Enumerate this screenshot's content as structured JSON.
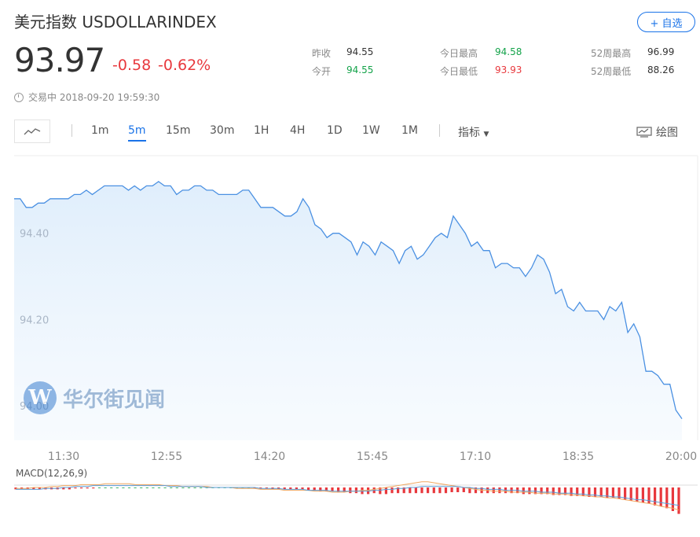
{
  "header": {
    "title": "美元指数 USDOLLARINDEX",
    "add_button": "+ 自选",
    "price": "93.97",
    "change": "-0.58",
    "change_pct": "-0.62%",
    "status": "交易中 2018-09-20 19:59:30"
  },
  "stats": [
    {
      "label": "昨收",
      "value": "94.55"
    },
    {
      "label": "今开",
      "value": "94.55"
    },
    {
      "label": "今日最高",
      "value": "94.58"
    },
    {
      "label": "今日最低",
      "value": "93.93"
    },
    {
      "label": "52周最高",
      "value": "96.99"
    },
    {
      "label": "52周最低",
      "value": "88.26"
    }
  ],
  "toolbar": {
    "periods": [
      "1m",
      "5m",
      "15m",
      "30m",
      "1H",
      "4H",
      "1D",
      "1W",
      "1M"
    ],
    "active_period": "5m",
    "indicator": "指标",
    "draw": "绘图"
  },
  "macd_label": "MACD(12,26,9)",
  "watermark": "华尔街见闻",
  "colors": {
    "line": "#4a90e2",
    "up": "#e8383d",
    "down": "#14a34a",
    "accent": "#1a73e8",
    "macd_bar": "#e8383d"
  },
  "chart_data": {
    "type": "area",
    "x_ticks": [
      "11:30",
      "12:55",
      "14:20",
      "15:45",
      "17:10",
      "18:35",
      "20:00"
    ],
    "y_ticks": [
      "94.40",
      "94.20",
      "94.00"
    ],
    "ylim": [
      93.92,
      94.58
    ],
    "values": [
      94.48,
      94.48,
      94.46,
      94.46,
      94.47,
      94.47,
      94.48,
      94.48,
      94.48,
      94.48,
      94.49,
      94.49,
      94.5,
      94.49,
      94.5,
      94.51,
      94.51,
      94.51,
      94.51,
      94.5,
      94.51,
      94.5,
      94.51,
      94.51,
      94.52,
      94.51,
      94.51,
      94.49,
      94.5,
      94.5,
      94.51,
      94.51,
      94.5,
      94.5,
      94.49,
      94.49,
      94.49,
      94.49,
      94.5,
      94.5,
      94.48,
      94.46,
      94.46,
      94.46,
      94.45,
      94.44,
      94.44,
      94.45,
      94.48,
      94.46,
      94.42,
      94.41,
      94.39,
      94.4,
      94.4,
      94.39,
      94.38,
      94.35,
      94.38,
      94.37,
      94.35,
      94.38,
      94.37,
      94.36,
      94.33,
      94.36,
      94.37,
      94.34,
      94.35,
      94.37,
      94.39,
      94.4,
      94.39,
      94.44,
      94.42,
      94.4,
      94.37,
      94.38,
      94.36,
      94.36,
      94.32,
      94.33,
      94.33,
      94.32,
      94.32,
      94.3,
      94.32,
      94.35,
      94.34,
      94.31,
      94.26,
      94.27,
      94.23,
      94.22,
      94.24,
      94.22,
      94.22,
      94.22,
      94.2,
      94.23,
      94.22,
      94.24,
      94.17,
      94.19,
      94.16,
      94.08,
      94.08,
      94.07,
      94.05,
      94.05,
      93.99,
      93.97
    ]
  },
  "macd_data": {
    "bars": [
      -0.2,
      -0.2,
      -0.2,
      -0.2,
      -0.2,
      -0.2,
      -0.2,
      -0.2,
      -0.2,
      -0.2,
      -0.1,
      -0.1,
      -0.1,
      -0.1,
      0,
      0,
      0,
      0,
      0,
      0,
      0,
      0,
      0,
      0,
      0,
      0,
      0,
      0,
      0,
      0,
      0,
      0,
      0,
      0,
      0,
      0,
      0,
      0,
      0,
      0,
      -0.1,
      -0.1,
      -0.1,
      -0.2,
      -0.2,
      -0.2,
      -0.2,
      -0.2,
      -0.2,
      -0.3,
      -0.3,
      -0.4,
      -0.4,
      -0.4,
      -0.5,
      -0.5,
      -0.6,
      -0.6,
      -0.7,
      -0.7,
      -0.6,
      -0.7,
      -0.7,
      -0.6,
      -0.6,
      -0.6,
      -0.6,
      -0.6,
      -0.6,
      -0.6,
      -0.6,
      -0.6,
      -0.6,
      -0.5,
      -0.5,
      -0.5,
      -0.6,
      -0.6,
      -0.6,
      -0.6,
      -0.6,
      -0.6,
      -0.6,
      -0.6,
      -0.6,
      -0.7,
      -0.7,
      -0.7,
      -0.7,
      -0.7,
      -0.8,
      -0.8,
      -0.8,
      -0.9,
      -0.9,
      -0.9,
      -1.0,
      -1.0,
      -1.0,
      -1.1,
      -1.1,
      -1.2,
      -1.3,
      -1.4,
      -1.5,
      -1.6,
      -1.7,
      -1.9,
      -2.0,
      -2.2,
      -2.5,
      -2.8
    ],
    "dif": [
      -0.1,
      -0.1,
      -0.1,
      0,
      0,
      0,
      0.1,
      0.1,
      0.2,
      0.2,
      0.2,
      0.3,
      0.3,
      0.3,
      0.3,
      0.4,
      0.4,
      0.4,
      0.4,
      0.4,
      0.3,
      0.3,
      0.3,
      0.3,
      0.3,
      0.2,
      0.2,
      0.2,
      0.1,
      0.1,
      0.1,
      0.1,
      0.1,
      0,
      0,
      0,
      0,
      -0.1,
      -0.1,
      -0.1,
      -0.1,
      -0.2,
      -0.2,
      -0.2,
      -0.2,
      -0.3,
      -0.3,
      -0.3,
      -0.3,
      -0.3,
      -0.4,
      -0.4,
      -0.4,
      -0.5,
      -0.5,
      -0.5,
      -0.4,
      -0.4,
      -0.3,
      -0.3,
      -0.2,
      -0.1,
      0,
      0.1,
      0.2,
      0.3,
      0.4,
      0.5,
      0.6,
      0.6,
      0.5,
      0.4,
      0.3,
      0.2,
      0.1,
      0,
      -0.1,
      -0.2,
      -0.3,
      -0.3,
      -0.4,
      -0.4,
      -0.4,
      -0.5,
      -0.5,
      -0.5,
      -0.5,
      -0.6,
      -0.6,
      -0.6,
      -0.7,
      -0.7,
      -0.7,
      -0.8,
      -0.8,
      -0.9,
      -0.9,
      -1.0,
      -1.0,
      -1.1,
      -1.1,
      -1.2,
      -1.3,
      -1.4,
      -1.5,
      -1.6,
      -1.7,
      -1.8,
      -2.0,
      -2.1,
      -2.2,
      -2.4
    ],
    "dea": [
      -0.2,
      -0.2,
      -0.2,
      -0.2,
      -0.2,
      -0.1,
      -0.1,
      -0.1,
      0,
      0,
      0.1,
      0.1,
      0.1,
      0.2,
      0.2,
      0.2,
      0.2,
      0.2,
      0.2,
      0.2,
      0.2,
      0.2,
      0.2,
      0.2,
      0.2,
      0.2,
      0.1,
      0.1,
      0.1,
      0.1,
      0.1,
      0.1,
      0,
      0,
      0,
      0,
      0,
      0,
      0,
      0,
      0,
      -0.1,
      -0.1,
      -0.1,
      -0.1,
      -0.2,
      -0.2,
      -0.2,
      -0.2,
      -0.3,
      -0.3,
      -0.3,
      -0.3,
      -0.4,
      -0.4,
      -0.4,
      -0.4,
      -0.4,
      -0.4,
      -0.4,
      -0.3,
      -0.3,
      -0.2,
      -0.2,
      -0.1,
      -0.1,
      0,
      0,
      0.1,
      0.1,
      0.1,
      0.1,
      0.1,
      0.1,
      0.1,
      0,
      0,
      -0.1,
      -0.1,
      -0.2,
      -0.2,
      -0.2,
      -0.3,
      -0.3,
      -0.3,
      -0.4,
      -0.4,
      -0.4,
      -0.5,
      -0.5,
      -0.5,
      -0.6,
      -0.6,
      -0.6,
      -0.7,
      -0.7,
      -0.8,
      -0.8,
      -0.9,
      -0.9,
      -1.0,
      -1.0,
      -1.1,
      -1.2,
      -1.3,
      -1.3,
      -1.4,
      -1.5,
      -1.6,
      -1.7,
      -1.8,
      -1.9
    ]
  }
}
